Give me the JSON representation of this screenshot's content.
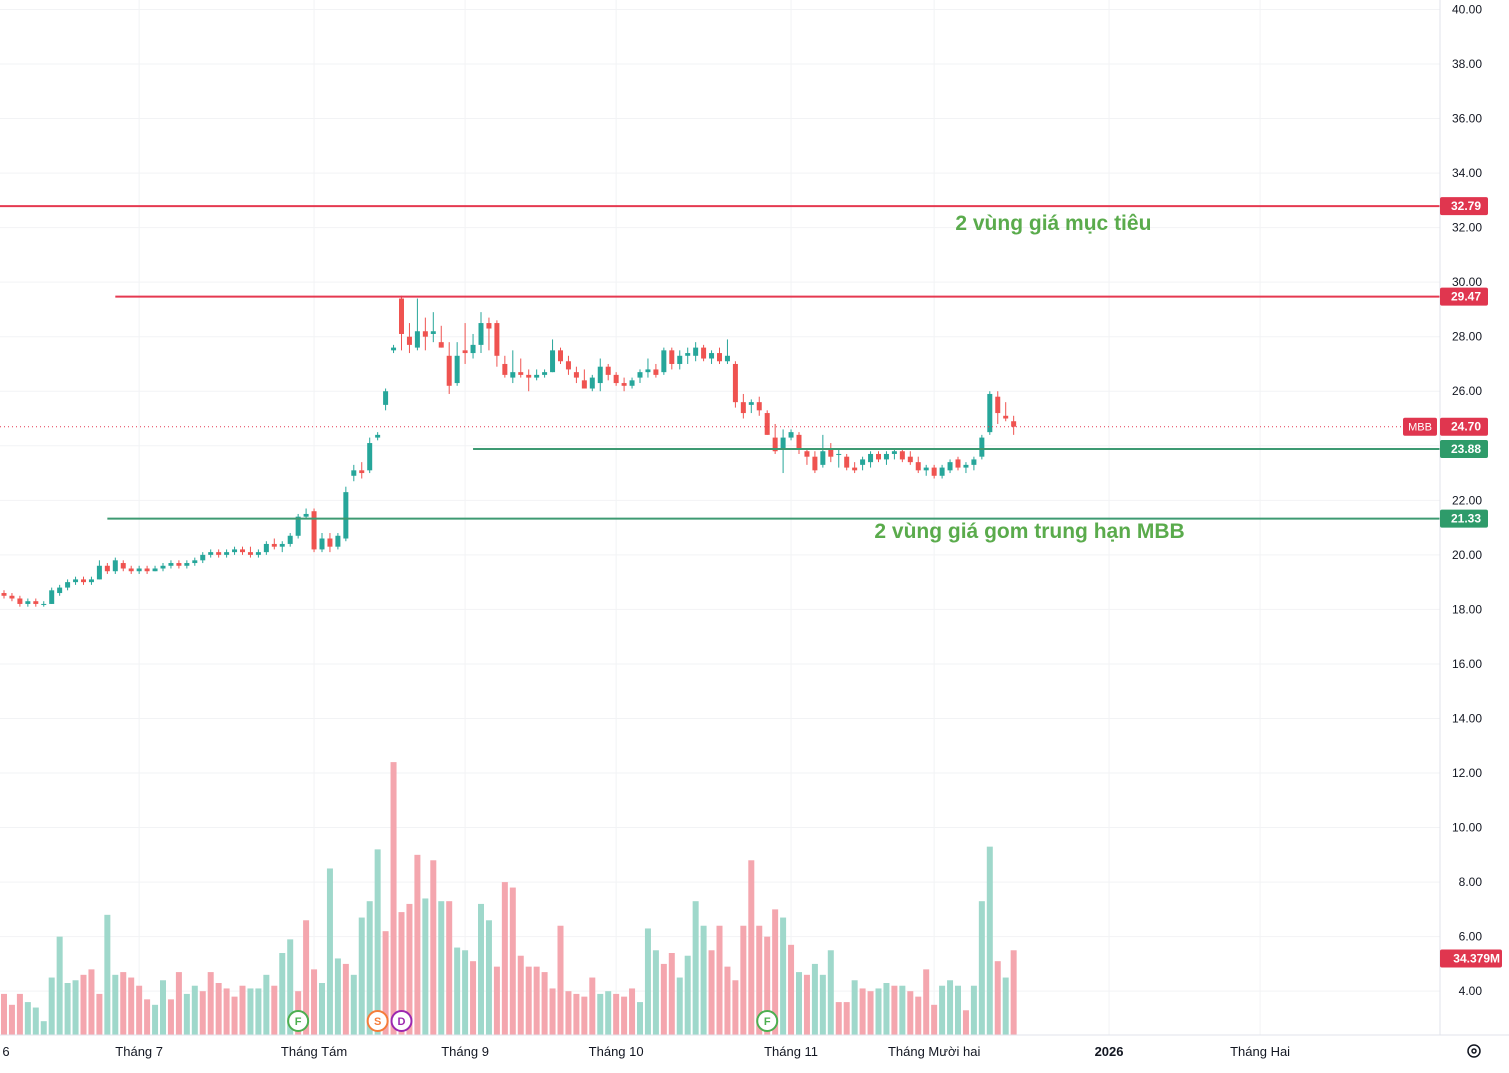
{
  "chart_data": {
    "type": "candlestick",
    "symbol": "MBB",
    "current_price": 24.7,
    "volume_label": "34.379M",
    "ylim": [
      2.6,
      40.3
    ],
    "y_ticks": [
      "40.00",
      "38.00",
      "36.00",
      "34.00",
      "32.00",
      "30.00",
      "28.00",
      "26.00",
      "24.00",
      "22.00",
      "20.00",
      "18.00",
      "16.00",
      "14.00",
      "12.00",
      "10.00",
      "8.00",
      "6.00",
      "4.00"
    ],
    "x_ticks": [
      {
        "label": "6",
        "bar": -1
      },
      {
        "label": "Tháng 7",
        "bar": 17
      },
      {
        "label": "Tháng Tám",
        "bar": 39
      },
      {
        "label": "Tháng 9",
        "bar": 58
      },
      {
        "label": "Tháng 10",
        "bar": 77
      },
      {
        "label": "Tháng 11",
        "bar": 99
      },
      {
        "label": "Tháng Mười hai",
        "bar": 117
      },
      {
        "label": "2026",
        "bar": 139
      },
      {
        "label": "Tháng Hai",
        "bar": 158
      }
    ],
    "colors": {
      "up": "#26a69a",
      "down": "#ef5350",
      "up_vol": "#9fd8cb",
      "down_vol": "#f4a6ae",
      "red_line": "#e53950",
      "green_line": "#3d9a72",
      "label_red": "#e0364f",
      "label_green": "#2e9b6a",
      "annotation": "#5aab4c"
    },
    "levels": [
      {
        "value": 32.79,
        "label": "32.79",
        "color": "red",
        "start_bar": -1
      },
      {
        "value": 29.47,
        "label": "29.47",
        "color": "red",
        "start_bar": 14
      },
      {
        "value": 23.88,
        "label": "23.88",
        "color": "green",
        "start_bar": 59
      },
      {
        "value": 21.33,
        "label": "21.33",
        "color": "green",
        "start_bar": 13
      }
    ],
    "annotations": [
      {
        "text": "2 vùng giá mục tiêu",
        "price": 32.1,
        "bar": 132
      },
      {
        "text": "2 vùng giá gom trung hạn  MBB",
        "price": 20.8,
        "bar": 129
      }
    ],
    "event_markers": [
      {
        "letter": "F",
        "bar": 37,
        "color": "#4caf50"
      },
      {
        "letter": "S",
        "bar": 47,
        "color": "#f57c3a"
      },
      {
        "letter": "D",
        "bar": 50,
        "color": "#9c27b0"
      },
      {
        "letter": "F",
        "bar": 96,
        "color": "#4caf50"
      }
    ],
    "candles": [
      [
        18.6,
        18.7,
        18.4,
        18.5
      ],
      [
        18.5,
        18.6,
        18.3,
        18.4
      ],
      [
        18.4,
        18.5,
        18.1,
        18.2
      ],
      [
        18.2,
        18.4,
        18.1,
        18.3
      ],
      [
        18.3,
        18.4,
        18.1,
        18.2
      ],
      [
        18.2,
        18.3,
        18.1,
        18.2
      ],
      [
        18.2,
        18.8,
        18.2,
        18.7
      ],
      [
        18.6,
        18.9,
        18.5,
        18.8
      ],
      [
        18.8,
        19.1,
        18.7,
        19.0
      ],
      [
        19.0,
        19.2,
        18.9,
        19.1
      ],
      [
        19.1,
        19.2,
        18.9,
        19.0
      ],
      [
        19.0,
        19.2,
        18.9,
        19.1
      ],
      [
        19.1,
        19.8,
        19.1,
        19.6
      ],
      [
        19.6,
        19.7,
        19.3,
        19.4
      ],
      [
        19.4,
        19.9,
        19.3,
        19.8
      ],
      [
        19.7,
        19.8,
        19.4,
        19.5
      ],
      [
        19.5,
        19.6,
        19.3,
        19.4
      ],
      [
        19.4,
        19.6,
        19.3,
        19.5
      ],
      [
        19.5,
        19.6,
        19.3,
        19.4
      ],
      [
        19.4,
        19.6,
        19.4,
        19.5
      ],
      [
        19.5,
        19.7,
        19.4,
        19.6
      ],
      [
        19.6,
        19.8,
        19.5,
        19.7
      ],
      [
        19.7,
        19.8,
        19.5,
        19.6
      ],
      [
        19.6,
        19.8,
        19.5,
        19.7
      ],
      [
        19.7,
        19.9,
        19.6,
        19.8
      ],
      [
        19.8,
        20.1,
        19.7,
        20.0
      ],
      [
        20.0,
        20.2,
        19.9,
        20.1
      ],
      [
        20.1,
        20.2,
        19.9,
        20.0
      ],
      [
        20.0,
        20.2,
        19.9,
        20.1
      ],
      [
        20.1,
        20.3,
        20.0,
        20.2
      ],
      [
        20.2,
        20.3,
        20.0,
        20.1
      ],
      [
        20.1,
        20.3,
        19.9,
        20.0
      ],
      [
        20.0,
        20.2,
        19.9,
        20.1
      ],
      [
        20.1,
        20.5,
        20.0,
        20.4
      ],
      [
        20.4,
        20.6,
        20.2,
        20.3
      ],
      [
        20.3,
        20.5,
        20.1,
        20.4
      ],
      [
        20.4,
        20.8,
        20.3,
        20.7
      ],
      [
        20.7,
        21.5,
        20.6,
        21.4
      ],
      [
        21.4,
        21.7,
        21.3,
        21.5
      ],
      [
        21.6,
        21.7,
        20.1,
        20.2
      ],
      [
        20.2,
        20.8,
        20.1,
        20.6
      ],
      [
        20.6,
        20.8,
        20.1,
        20.3
      ],
      [
        20.3,
        20.8,
        20.2,
        20.7
      ],
      [
        20.6,
        22.5,
        20.5,
        22.3
      ],
      [
        22.9,
        23.3,
        22.7,
        23.1
      ],
      [
        23.1,
        23.4,
        22.8,
        23.0
      ],
      [
        23.1,
        24.3,
        23.0,
        24.1
      ],
      [
        24.3,
        24.5,
        24.2,
        24.4
      ],
      [
        25.5,
        26.1,
        25.3,
        26.0
      ],
      [
        27.5,
        27.7,
        27.4,
        27.6
      ],
      [
        29.4,
        29.5,
        27.5,
        28.1
      ],
      [
        28.0,
        28.5,
        27.4,
        27.7
      ],
      [
        27.6,
        29.4,
        27.5,
        28.2
      ],
      [
        28.2,
        28.7,
        27.5,
        28.0
      ],
      [
        28.1,
        28.9,
        27.8,
        28.2
      ],
      [
        27.8,
        28.4,
        27.6,
        27.6
      ],
      [
        27.3,
        27.8,
        25.9,
        26.2
      ],
      [
        26.3,
        27.8,
        26.2,
        27.3
      ],
      [
        27.5,
        28.5,
        27.0,
        27.4
      ],
      [
        27.4,
        28.1,
        27.2,
        27.7
      ],
      [
        27.7,
        28.9,
        27.4,
        28.5
      ],
      [
        28.5,
        28.7,
        27.5,
        28.3
      ],
      [
        28.5,
        28.6,
        26.9,
        27.3
      ],
      [
        27.0,
        27.3,
        26.5,
        26.6
      ],
      [
        26.5,
        27.5,
        26.3,
        26.7
      ],
      [
        26.7,
        27.2,
        26.5,
        26.6
      ],
      [
        26.6,
        26.8,
        26.0,
        26.5
      ],
      [
        26.5,
        26.8,
        26.4,
        26.6
      ],
      [
        26.6,
        26.8,
        26.5,
        26.7
      ],
      [
        26.7,
        27.9,
        26.7,
        27.5
      ],
      [
        27.5,
        27.6,
        27.0,
        27.1
      ],
      [
        27.1,
        27.3,
        26.6,
        26.8
      ],
      [
        26.7,
        26.9,
        26.3,
        26.5
      ],
      [
        26.4,
        26.8,
        26.1,
        26.1
      ],
      [
        26.1,
        26.6,
        26.0,
        26.5
      ],
      [
        26.3,
        27.2,
        26.0,
        26.9
      ],
      [
        26.9,
        27.0,
        26.4,
        26.6
      ],
      [
        26.6,
        26.7,
        26.2,
        26.3
      ],
      [
        26.3,
        26.5,
        26.0,
        26.2
      ],
      [
        26.2,
        26.5,
        26.1,
        26.4
      ],
      [
        26.5,
        26.8,
        26.3,
        26.7
      ],
      [
        26.7,
        27.2,
        26.5,
        26.8
      ],
      [
        26.8,
        27.0,
        26.5,
        26.6
      ],
      [
        26.7,
        27.6,
        26.6,
        27.5
      ],
      [
        27.5,
        27.6,
        26.8,
        27.0
      ],
      [
        27.0,
        27.5,
        26.8,
        27.3
      ],
      [
        27.3,
        27.6,
        27.0,
        27.4
      ],
      [
        27.3,
        27.8,
        27.1,
        27.6
      ],
      [
        27.6,
        27.7,
        27.1,
        27.2
      ],
      [
        27.2,
        27.5,
        27.0,
        27.4
      ],
      [
        27.4,
        27.6,
        27.0,
        27.1
      ],
      [
        27.1,
        27.9,
        27.0,
        27.3
      ],
      [
        27.0,
        27.1,
        25.4,
        25.6
      ],
      [
        25.6,
        25.9,
        25.0,
        25.2
      ],
      [
        25.5,
        25.7,
        25.2,
        25.6
      ],
      [
        25.6,
        25.8,
        25.1,
        25.3
      ],
      [
        25.2,
        25.3,
        24.4,
        24.4
      ],
      [
        24.3,
        24.8,
        23.7,
        23.8
      ],
      [
        23.9,
        24.6,
        23.0,
        24.3
      ],
      [
        24.3,
        24.6,
        24.2,
        24.5
      ],
      [
        24.4,
        24.5,
        23.7,
        23.9
      ],
      [
        23.8,
        23.9,
        23.3,
        23.6
      ],
      [
        23.6,
        23.8,
        23.0,
        23.1
      ],
      [
        23.3,
        24.4,
        23.2,
        23.8
      ],
      [
        23.9,
        24.1,
        23.4,
        23.6
      ],
      [
        23.7,
        23.9,
        23.2,
        23.7
      ],
      [
        23.6,
        23.7,
        23.1,
        23.2
      ],
      [
        23.2,
        23.4,
        23.0,
        23.1
      ],
      [
        23.3,
        23.6,
        23.1,
        23.5
      ],
      [
        23.4,
        23.8,
        23.2,
        23.7
      ],
      [
        23.7,
        23.8,
        23.4,
        23.5
      ],
      [
        23.5,
        23.8,
        23.3,
        23.7
      ],
      [
        23.7,
        23.9,
        23.5,
        23.8
      ],
      [
        23.8,
        23.9,
        23.4,
        23.5
      ],
      [
        23.6,
        23.8,
        23.3,
        23.4
      ],
      [
        23.4,
        23.6,
        23.0,
        23.1
      ],
      [
        23.1,
        23.3,
        22.9,
        23.2
      ],
      [
        23.2,
        23.3,
        22.8,
        22.9
      ],
      [
        22.9,
        23.3,
        22.8,
        23.2
      ],
      [
        23.1,
        23.5,
        23.0,
        23.4
      ],
      [
        23.5,
        23.6,
        23.1,
        23.2
      ],
      [
        23.2,
        23.4,
        23.0,
        23.3
      ],
      [
        23.3,
        23.6,
        23.1,
        23.5
      ],
      [
        23.6,
        24.4,
        23.5,
        24.3
      ],
      [
        24.5,
        26.0,
        24.4,
        25.9
      ],
      [
        25.8,
        26.0,
        24.8,
        25.2
      ],
      [
        25.1,
        25.6,
        24.9,
        25.0
      ],
      [
        24.9,
        25.1,
        24.4,
        24.7
      ]
    ],
    "volumes": [
      [
        3.9,
        0
      ],
      [
        3.5,
        0
      ],
      [
        3.9,
        0
      ],
      [
        3.6,
        1
      ],
      [
        3.4,
        1
      ],
      [
        2.9,
        1
      ],
      [
        4.5,
        1
      ],
      [
        6.0,
        1
      ],
      [
        4.3,
        1
      ],
      [
        4.4,
        1
      ],
      [
        4.6,
        0
      ],
      [
        4.8,
        0
      ],
      [
        3.9,
        0
      ],
      [
        6.8,
        1
      ],
      [
        4.6,
        1
      ],
      [
        4.7,
        0
      ],
      [
        4.5,
        0
      ],
      [
        4.2,
        0
      ],
      [
        3.7,
        0
      ],
      [
        3.5,
        1
      ],
      [
        4.4,
        1
      ],
      [
        3.7,
        0
      ],
      [
        4.7,
        0
      ],
      [
        3.9,
        1
      ],
      [
        4.2,
        1
      ],
      [
        4.0,
        0
      ],
      [
        4.7,
        0
      ],
      [
        4.3,
        0
      ],
      [
        4.1,
        0
      ],
      [
        3.8,
        0
      ],
      [
        4.2,
        0
      ],
      [
        4.1,
        1
      ],
      [
        4.1,
        1
      ],
      [
        4.6,
        1
      ],
      [
        4.2,
        0
      ],
      [
        5.4,
        1
      ],
      [
        5.9,
        1
      ],
      [
        4.0,
        0
      ],
      [
        6.6,
        0
      ],
      [
        4.8,
        0
      ],
      [
        4.3,
        1
      ],
      [
        8.5,
        1
      ],
      [
        5.2,
        1
      ],
      [
        5.0,
        0
      ],
      [
        4.6,
        1
      ],
      [
        6.7,
        1
      ],
      [
        7.3,
        1
      ],
      [
        9.2,
        1
      ],
      [
        6.2,
        0
      ],
      [
        12.4,
        0
      ],
      [
        6.9,
        0
      ],
      [
        7.2,
        0
      ],
      [
        9.0,
        0
      ],
      [
        7.4,
        1
      ],
      [
        8.8,
        0
      ],
      [
        7.3,
        1
      ],
      [
        7.3,
        0
      ],
      [
        5.6,
        1
      ],
      [
        5.5,
        1
      ],
      [
        5.1,
        0
      ],
      [
        7.2,
        1
      ],
      [
        6.6,
        1
      ],
      [
        4.9,
        0
      ],
      [
        8.0,
        0
      ],
      [
        7.8,
        0
      ],
      [
        5.3,
        0
      ],
      [
        4.9,
        0
      ],
      [
        4.9,
        0
      ],
      [
        4.7,
        0
      ],
      [
        4.1,
        0
      ],
      [
        6.4,
        0
      ],
      [
        4.0,
        0
      ],
      [
        3.9,
        0
      ],
      [
        3.8,
        0
      ],
      [
        4.5,
        0
      ],
      [
        3.9,
        1
      ],
      [
        4.0,
        1
      ],
      [
        3.9,
        0
      ],
      [
        3.8,
        0
      ],
      [
        4.1,
        0
      ],
      [
        3.6,
        1
      ],
      [
        6.3,
        1
      ],
      [
        5.5,
        1
      ],
      [
        5.0,
        0
      ],
      [
        5.4,
        0
      ],
      [
        4.5,
        1
      ],
      [
        5.3,
        1
      ],
      [
        7.3,
        1
      ],
      [
        6.4,
        1
      ],
      [
        5.5,
        0
      ],
      [
        6.4,
        0
      ],
      [
        4.9,
        0
      ],
      [
        4.4,
        0
      ],
      [
        6.4,
        0
      ],
      [
        8.8,
        0
      ],
      [
        6.4,
        0
      ],
      [
        6.0,
        0
      ],
      [
        7.0,
        0
      ],
      [
        6.7,
        1
      ],
      [
        5.7,
        0
      ],
      [
        4.7,
        1
      ],
      [
        4.6,
        0
      ],
      [
        5.0,
        1
      ],
      [
        4.6,
        1
      ],
      [
        5.5,
        1
      ],
      [
        3.6,
        0
      ],
      [
        3.6,
        0
      ],
      [
        4.4,
        1
      ],
      [
        4.1,
        0
      ],
      [
        4.0,
        0
      ],
      [
        4.1,
        1
      ],
      [
        4.3,
        1
      ],
      [
        4.2,
        0
      ],
      [
        4.2,
        1
      ],
      [
        4.0,
        0
      ],
      [
        3.8,
        0
      ],
      [
        4.8,
        0
      ],
      [
        3.5,
        0
      ],
      [
        4.2,
        1
      ],
      [
        4.4,
        1
      ],
      [
        4.2,
        1
      ],
      [
        3.3,
        0
      ],
      [
        4.2,
        1
      ],
      [
        7.3,
        1
      ],
      [
        9.3,
        1
      ],
      [
        5.1,
        0
      ],
      [
        4.5,
        1
      ],
      [
        5.5,
        0
      ]
    ]
  }
}
